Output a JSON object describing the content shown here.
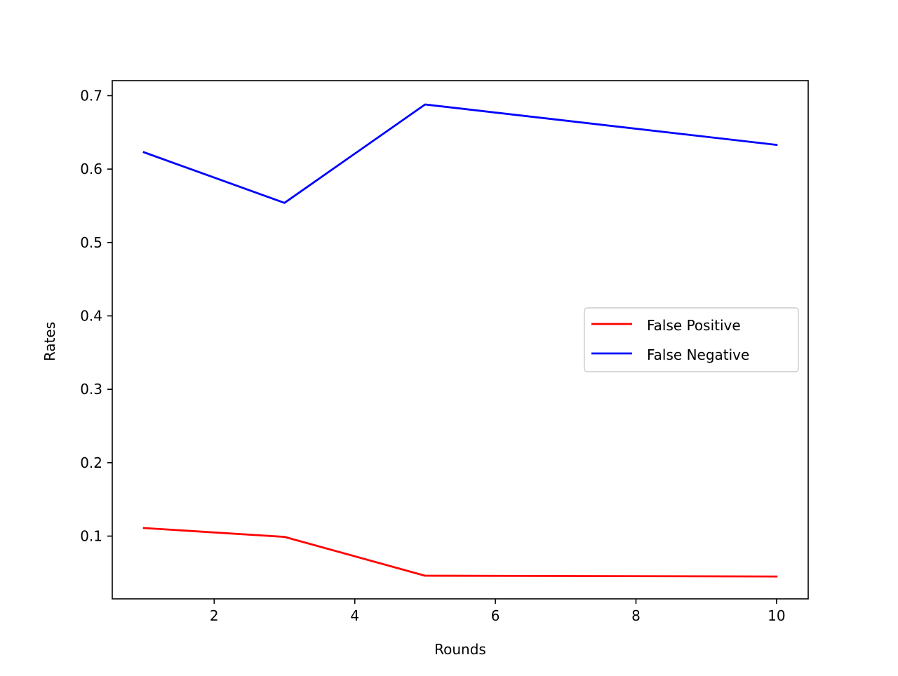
{
  "chart_data": {
    "type": "line",
    "title": "",
    "xlabel": "Rounds",
    "ylabel": "Rates",
    "xlim": [
      0.55,
      10.45
    ],
    "ylim": [
      0.0145,
      0.7205
    ],
    "xticks": [
      2,
      4,
      6,
      8,
      10
    ],
    "xtick_labels": [
      "2",
      "4",
      "6",
      "8",
      "10"
    ],
    "yticks": [
      0.1,
      0.2,
      0.3,
      0.4,
      0.5,
      0.6,
      0.7
    ],
    "ytick_labels": [
      "0.1",
      "0.2",
      "0.3",
      "0.4",
      "0.5",
      "0.6",
      "0.7"
    ],
    "grid": false,
    "legend_position": "center-right",
    "x": [
      1,
      3,
      5,
      10
    ],
    "series": [
      {
        "name": "False Positive",
        "color": "#ff0000",
        "values": [
          0.111,
          0.099,
          0.046,
          0.045
        ]
      },
      {
        "name": "False Negative",
        "color": "#0000ff",
        "values": [
          0.623,
          0.554,
          0.688,
          0.633
        ]
      }
    ]
  }
}
